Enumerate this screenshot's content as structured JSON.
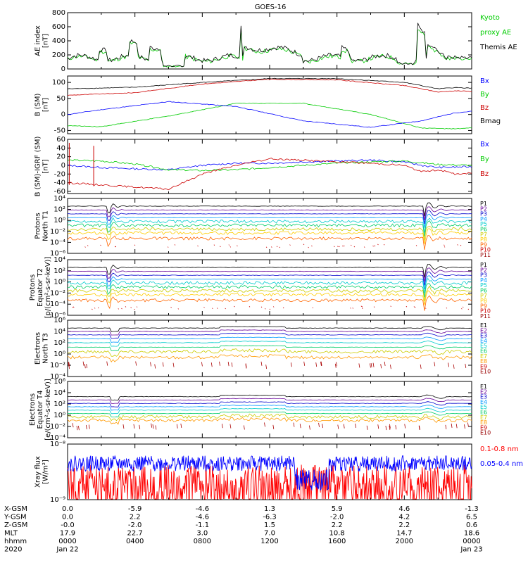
{
  "chart_data": {
    "type": "line",
    "title": "GOES-16",
    "x_hours_range": [
      0,
      24
    ],
    "panels": [
      {
        "id": "ae",
        "ylabel": [
          "AE index",
          "[nT]"
        ],
        "ylim": [
          0,
          800
        ],
        "yticks": [
          {
            "label": "0",
            "v": 0
          },
          {
            "label": "200",
            "v": 200
          },
          {
            "label": "400",
            "v": 400
          },
          {
            "label": "600",
            "v": 600
          },
          {
            "label": "800",
            "v": 800
          }
        ],
        "log": false,
        "legend": [
          {
            "text": "Kyoto",
            "color": "#00cc00"
          },
          {
            "text": "proxy AE",
            "color": "#00cc00"
          },
          {
            "text": "Themis AE",
            "color": "#000000"
          }
        ],
        "series": [
          {
            "name": "Kyoto proxy AE",
            "color": "#00cc00",
            "gen": "ae",
            "base": 0.92,
            "seed": 11
          },
          {
            "name": "Themis AE",
            "color": "#000000",
            "gen": "ae",
            "base": 1.0,
            "seed": 7
          }
        ]
      },
      {
        "id": "bsm",
        "ylabel": [
          "B (SM)",
          "[nT]"
        ],
        "ylim": [
          -60,
          120
        ],
        "yticks": [
          {
            "label": "-50",
            "v": -50
          },
          {
            "label": "0",
            "v": 0
          },
          {
            "label": "50",
            "v": 50
          },
          {
            "label": "100",
            "v": 100
          }
        ],
        "log": false,
        "legend": [
          {
            "text": "Bx",
            "color": "#0000ff"
          },
          {
            "text": "By",
            "color": "#00cc00"
          },
          {
            "text": "Bz",
            "color": "#cc0000"
          },
          {
            "text": "Bmag",
            "color": "#000000"
          }
        ],
        "series": [
          {
            "name": "Bmag",
            "color": "#000000",
            "x": [
              0,
              4,
              8,
              12,
              16,
              20,
              22,
              23,
              24
            ],
            "y": [
              80,
              85,
              100,
              112,
              112,
              100,
              80,
              84,
              82
            ]
          },
          {
            "name": "Bz",
            "color": "#cc0000",
            "x": [
              0,
              4,
              8,
              12,
              16,
              20,
              22,
              23,
              24
            ],
            "y": [
              60,
              68,
              95,
              110,
              108,
              90,
              70,
              74,
              72
            ]
          },
          {
            "name": "By",
            "color": "#00cc00",
            "x": [
              0,
              2,
              6,
              10,
              14,
              18,
              21,
              23,
              24
            ],
            "y": [
              -35,
              -38,
              -5,
              35,
              35,
              0,
              -42,
              -45,
              -42
            ]
          },
          {
            "name": "Bx",
            "color": "#0000ff",
            "x": [
              0,
              2,
              6,
              10,
              14,
              18,
              21,
              23,
              24
            ],
            "y": [
              0,
              15,
              40,
              25,
              -20,
              -40,
              -20,
              5,
              10
            ]
          }
        ]
      },
      {
        "id": "bigrf",
        "ylabel": [
          "B (SM)-IGRF (SM)",
          "[nT]"
        ],
        "ylim": [
          -65,
          60
        ],
        "yticks": [
          {
            "label": "-60",
            "v": -60
          },
          {
            "label": "-40",
            "v": -40
          },
          {
            "label": "-20",
            "v": -20
          },
          {
            "label": "0",
            "v": 0
          },
          {
            "label": "20",
            "v": 20
          },
          {
            "label": "40",
            "v": 40
          },
          {
            "label": "60",
            "v": 60
          }
        ],
        "log": false,
        "legend": [
          {
            "text": "Bx",
            "color": "#0000ff"
          },
          {
            "text": "By",
            "color": "#00cc00"
          },
          {
            "text": "Bz",
            "color": "#cc0000"
          }
        ],
        "series": [
          {
            "name": "Bx",
            "color": "#0000ff",
            "x": [
              0,
              2,
              4,
              6,
              8,
              10,
              12,
              14,
              16,
              18,
              20,
              21,
              22,
              24
            ],
            "y": [
              0,
              -5,
              -8,
              -10,
              0,
              5,
              5,
              8,
              10,
              12,
              8,
              0,
              -5,
              -3
            ]
          },
          {
            "name": "By",
            "color": "#00cc00",
            "x": [
              0,
              2,
              4,
              6,
              8,
              10,
              12,
              14,
              16,
              18,
              20,
              22,
              24
            ],
            "y": [
              12,
              10,
              3,
              -10,
              -12,
              -10,
              -5,
              0,
              5,
              8,
              10,
              2,
              0
            ]
          },
          {
            "name": "Bz",
            "color": "#cc0000",
            "x": [
              0,
              2,
              4,
              6,
              8,
              10,
              12,
              14,
              16,
              18,
              20,
              21,
              22,
              23,
              24
            ],
            "y": [
              -40,
              -45,
              -50,
              -55,
              -20,
              0,
              15,
              12,
              8,
              5,
              0,
              -15,
              -10,
              -20,
              -18
            ]
          }
        ],
        "spikes": [
          {
            "h": 0.1,
            "from": -45,
            "to": 52
          },
          {
            "h": 1.55,
            "from": -48,
            "to": 45
          }
        ]
      },
      {
        "id": "protons_t1",
        "ylabel": [
          "Protons",
          "North T1"
        ],
        "ylim_exp": [
          -6,
          4
        ],
        "yticks": [
          {
            "label": "10⁴",
            "v": 4
          },
          {
            "label": "10²",
            "v": 2
          },
          {
            "label": "10⁰",
            "v": 0
          },
          {
            "label": "10⁻²",
            "v": -2
          },
          {
            "label": "10⁻⁴",
            "v": -4
          },
          {
            "label": "10⁻⁶",
            "v": -6
          }
        ],
        "log": true,
        "legend": [
          {
            "text": "P1",
            "color": "#000000"
          },
          {
            "text": "P2",
            "color": "#660099"
          },
          {
            "text": "P3",
            "color": "#0000cc"
          },
          {
            "text": "P4",
            "color": "#0099ff"
          },
          {
            "text": "P5",
            "color": "#00cccc"
          },
          {
            "text": "P6",
            "color": "#00cc66"
          },
          {
            "text": "P7",
            "color": "#cccc00"
          },
          {
            "text": "P8",
            "color": "#ffcc00"
          },
          {
            "text": "P9",
            "color": "#ff6600"
          },
          {
            "text": "P10",
            "color": "#cc0000"
          },
          {
            "text": "P11",
            "color": "#990000"
          }
        ],
        "series": [
          {
            "name": "P1",
            "color": "#000000",
            "level": 2.6
          },
          {
            "name": "P2",
            "color": "#660099",
            "level": 1.9
          },
          {
            "name": "P3",
            "color": "#0000cc",
            "level": 1.2
          },
          {
            "name": "P4",
            "color": "#0099ff",
            "level": 0.5
          },
          {
            "name": "P5",
            "color": "#00cccc",
            "level": -0.2
          },
          {
            "name": "P6",
            "color": "#00cc66",
            "level": -0.9
          },
          {
            "name": "P7",
            "color": "#cccc00",
            "level": -1.6
          },
          {
            "name": "P8",
            "color": "#ffcc00",
            "level": -2.3
          },
          {
            "name": "P9",
            "color": "#ff6600",
            "level": -3.3
          }
        ]
      },
      {
        "id": "protons_t2",
        "ylabel": [
          "Protons",
          "Equator T2",
          "[p/(cm²-s-sr-keV)]"
        ],
        "ylim_exp": [
          -6,
          4
        ],
        "yticks": [
          {
            "label": "10⁴",
            "v": 4
          },
          {
            "label": "10²",
            "v": 2
          },
          {
            "label": "10⁰",
            "v": 0
          },
          {
            "label": "10⁻²",
            "v": -2
          },
          {
            "label": "10⁻⁴",
            "v": -4
          },
          {
            "label": "10⁻⁶",
            "v": -6
          }
        ],
        "log": true,
        "legend": [
          {
            "text": "P1",
            "color": "#000000"
          },
          {
            "text": "P2",
            "color": "#660099"
          },
          {
            "text": "P3",
            "color": "#0000cc"
          },
          {
            "text": "P4",
            "color": "#0099ff"
          },
          {
            "text": "P5",
            "color": "#00cccc"
          },
          {
            "text": "P6",
            "color": "#00cc66"
          },
          {
            "text": "P7",
            "color": "#cccc00"
          },
          {
            "text": "P8",
            "color": "#ffcc00"
          },
          {
            "text": "P9",
            "color": "#ff6600"
          },
          {
            "text": "P10",
            "color": "#cc0000"
          },
          {
            "text": "P11",
            "color": "#990000"
          }
        ],
        "series": [
          {
            "name": "P1",
            "color": "#000000",
            "level": 2.6
          },
          {
            "name": "P2",
            "color": "#660099",
            "level": 1.9
          },
          {
            "name": "P3",
            "color": "#0000cc",
            "level": 1.2
          },
          {
            "name": "P4",
            "color": "#0099ff",
            "level": 0.5
          },
          {
            "name": "P5",
            "color": "#00cccc",
            "level": -0.2
          },
          {
            "name": "P6",
            "color": "#00cc66",
            "level": -0.9
          },
          {
            "name": "P7",
            "color": "#cccc00",
            "level": -1.6
          },
          {
            "name": "P8",
            "color": "#ffcc00",
            "level": -2.3
          },
          {
            "name": "P9",
            "color": "#ff6600",
            "level": -3.3
          }
        ]
      },
      {
        "id": "electrons_t3",
        "ylabel": [
          "Electrons",
          "North T3"
        ],
        "ylim_exp": [
          -4,
          6
        ],
        "yticks": [
          {
            "label": "10⁶",
            "v": 6
          },
          {
            "label": "10⁴",
            "v": 4
          },
          {
            "label": "10²",
            "v": 2
          },
          {
            "label": "10⁰",
            "v": 0
          },
          {
            "label": "10⁻²",
            "v": -2
          },
          {
            "label": "10⁻⁴",
            "v": -4
          }
        ],
        "log": true,
        "legend": [
          {
            "text": "E1",
            "color": "#000000"
          },
          {
            "text": "E2",
            "color": "#660099"
          },
          {
            "text": "E3",
            "color": "#0000cc"
          },
          {
            "text": "E4",
            "color": "#0099ff"
          },
          {
            "text": "E5",
            "color": "#00cccc"
          },
          {
            "text": "E6",
            "color": "#00cc66"
          },
          {
            "text": "E7",
            "color": "#cccc00"
          },
          {
            "text": "E8",
            "color": "#ff9900"
          },
          {
            "text": "E9",
            "color": "#cc0000"
          },
          {
            "text": "E10",
            "color": "#990000"
          }
        ],
        "series": [
          {
            "name": "E1",
            "color": "#000000",
            "level": 4.6
          },
          {
            "name": "E2",
            "color": "#660099",
            "level": 4.0
          },
          {
            "name": "E3",
            "color": "#0000cc",
            "level": 3.4
          },
          {
            "name": "E4",
            "color": "#0099ff",
            "level": 2.7
          },
          {
            "name": "E5",
            "color": "#00cccc",
            "level": 2.0
          },
          {
            "name": "E6",
            "color": "#00cc66",
            "level": 1.2
          },
          {
            "name": "E7",
            "color": "#cccc00",
            "level": 0.4
          },
          {
            "name": "E8",
            "color": "#ff9900",
            "level": -0.6
          }
        ]
      },
      {
        "id": "electrons_t4",
        "ylabel": [
          "Electrons",
          "Equator T4",
          "[e/(cm²-s-sr-keV)]"
        ],
        "ylim_exp": [
          -4,
          6
        ],
        "yticks": [
          {
            "label": "10⁶",
            "v": 6
          },
          {
            "label": "10⁴",
            "v": 4
          },
          {
            "label": "10²",
            "v": 2
          },
          {
            "label": "10⁰",
            "v": 0
          },
          {
            "label": "10⁻²",
            "v": -2
          },
          {
            "label": "10⁻⁴",
            "v": -4
          }
        ],
        "log": true,
        "legend": [
          {
            "text": "E1",
            "color": "#000000"
          },
          {
            "text": "E2",
            "color": "#660099"
          },
          {
            "text": "E3",
            "color": "#0000cc"
          },
          {
            "text": "E4",
            "color": "#0099ff"
          },
          {
            "text": "E5",
            "color": "#00cccc"
          },
          {
            "text": "E6",
            "color": "#00cc66"
          },
          {
            "text": "E7",
            "color": "#cccc00"
          },
          {
            "text": "E8",
            "color": "#ff9900"
          },
          {
            "text": "E9",
            "color": "#cc0000"
          },
          {
            "text": "E10",
            "color": "#990000"
          }
        ],
        "series": [
          {
            "name": "E1",
            "color": "#000000",
            "level": 3.3
          },
          {
            "name": "E2",
            "color": "#660099",
            "level": 2.7
          },
          {
            "name": "E3",
            "color": "#0000cc",
            "level": 2.1
          },
          {
            "name": "E4",
            "color": "#0099ff",
            "level": 1.5
          },
          {
            "name": "E5",
            "color": "#00cccc",
            "level": 0.9
          },
          {
            "name": "E6",
            "color": "#00cc66",
            "level": 0.3
          },
          {
            "name": "E7",
            "color": "#cccc00",
            "level": -0.3
          },
          {
            "name": "E8",
            "color": "#ff9900",
            "level": -0.9
          }
        ]
      },
      {
        "id": "xray",
        "ylabel": [
          "Xray flux",
          "[W/m²]"
        ],
        "ylim_exp": [
          -9,
          -8
        ],
        "yticks": [
          {
            "label": "10⁻⁸",
            "v": -8
          },
          {
            "label": "10⁻⁹",
            "v": -9
          }
        ],
        "log": true,
        "legend": [
          {
            "text": "0.1-0.8 nm",
            "color": "#ff0000"
          },
          {
            "text": "0.05-0.4 nm",
            "color": "#0000ff"
          }
        ],
        "series": [
          {
            "name": "0.1-0.8 nm",
            "color": "#ff0000",
            "level": -8.65,
            "amp": 0.28
          },
          {
            "name": "0.05-0.4 nm",
            "color": "#0000ff",
            "level": -8.35,
            "amp": 0.14
          }
        ]
      }
    ],
    "x_axis": {
      "row_labels": [
        "X-GSM",
        "Y-GSM",
        "Z-GSM",
        "MLT",
        "hhmm",
        "2020"
      ],
      "columns": [
        {
          "h": 0,
          "vals": [
            "0.0",
            "0.0",
            "-0.0",
            "17.9",
            "0000",
            "Jan 22"
          ]
        },
        {
          "h": 4,
          "vals": [
            "-5.9",
            "2.2",
            "-2.0",
            "22.7",
            "0400",
            ""
          ]
        },
        {
          "h": 8,
          "vals": [
            "-4.6",
            "-4.6",
            "-1.1",
            "3.0",
            "0800",
            ""
          ]
        },
        {
          "h": 12,
          "vals": [
            "1.3",
            "-6.3",
            "1.5",
            "7.0",
            "1200",
            ""
          ]
        },
        {
          "h": 16,
          "vals": [
            "5.9",
            "-2.0",
            "2.2",
            "10.8",
            "1600",
            ""
          ]
        },
        {
          "h": 20,
          "vals": [
            "4.6",
            "4.2",
            "2.2",
            "14.7",
            "2000",
            ""
          ]
        },
        {
          "h": 24,
          "vals": [
            "-1.3",
            "6.5",
            "0.6",
            "18.6",
            "0000",
            "Jan 23"
          ]
        }
      ]
    }
  }
}
